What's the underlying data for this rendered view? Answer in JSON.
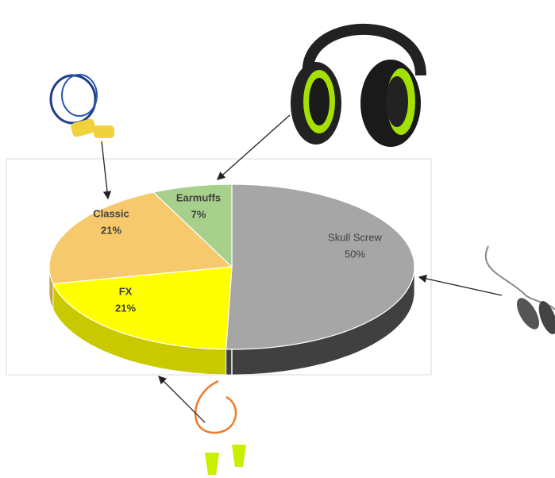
{
  "chart_data": {
    "type": "pie",
    "categories": [
      "Skull Screw",
      "FX",
      "Classic",
      "Earmuffs"
    ],
    "values": [
      50,
      21,
      21,
      7
    ],
    "value_labels": [
      "50%",
      "21%",
      "21%",
      "7%"
    ],
    "colors": [
      "#a6a6a6",
      "#ffff00",
      "#f6c96c",
      "#a8d08d"
    ],
    "side_colors": [
      "#404040",
      "#c9c900",
      "#c9a050",
      "#7fa066"
    ]
  }
}
